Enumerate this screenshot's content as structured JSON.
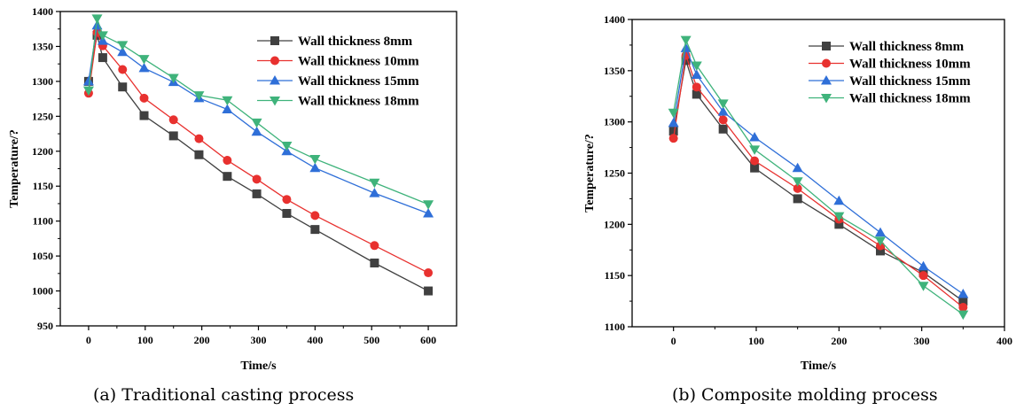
{
  "chart_data": [
    {
      "type": "line",
      "caption": "(a) Traditional casting process",
      "xlabel": "Time/s",
      "ylabel": "Temperature/?",
      "xlim": [
        -50,
        650
      ],
      "ylim": [
        950,
        1400
      ],
      "xticks": [
        0,
        100,
        200,
        300,
        400,
        500,
        600
      ],
      "yticks": [
        950,
        1000,
        1050,
        1100,
        1150,
        1200,
        1250,
        1300,
        1350,
        1400
      ],
      "legend_position": "top-right",
      "series": [
        {
          "name": "Wall thickness 8mm",
          "color": "#404040",
          "marker": "square",
          "x": [
            0,
            15,
            25,
            60,
            98,
            150,
            195,
            245,
            297,
            350,
            400,
            505,
            600
          ],
          "y": [
            1300,
            1366,
            1334,
            1292,
            1251,
            1222,
            1195,
            1164,
            1139,
            1111,
            1088,
            1040,
            1000
          ]
        },
        {
          "name": "Wall thickness 10mm",
          "color": "#e8312f",
          "marker": "circle",
          "x": [
            0,
            15,
            25,
            60,
            98,
            150,
            195,
            245,
            297,
            350,
            400,
            505,
            600
          ],
          "y": [
            1283,
            1370,
            1351,
            1317,
            1276,
            1245,
            1218,
            1187,
            1160,
            1131,
            1108,
            1065,
            1026
          ]
        },
        {
          "name": "Wall thickness 15mm",
          "color": "#2f6fd8",
          "marker": "triangle-up",
          "x": [
            0,
            15,
            25,
            60,
            98,
            150,
            195,
            245,
            297,
            350,
            400,
            505,
            600
          ],
          "y": [
            1300,
            1380,
            1358,
            1342,
            1319,
            1299,
            1276,
            1260,
            1228,
            1200,
            1176,
            1140,
            1111
          ]
        },
        {
          "name": "Wall thickness 18mm",
          "color": "#3fb37b",
          "marker": "triangle-down",
          "x": [
            0,
            15,
            25,
            60,
            98,
            150,
            195,
            245,
            297,
            350,
            400,
            505,
            600
          ],
          "y": [
            1287,
            1390,
            1366,
            1352,
            1332,
            1305,
            1280,
            1273,
            1241,
            1208,
            1189,
            1155,
            1124
          ]
        }
      ]
    },
    {
      "type": "line",
      "caption": "(b) Composite molding process",
      "xlabel": "Time/s",
      "ylabel": "Temperature/?",
      "xlim": [
        -50,
        400
      ],
      "ylim": [
        1100,
        1400
      ],
      "xticks": [
        0,
        100,
        200,
        300,
        400
      ],
      "yticks": [
        1100,
        1150,
        1200,
        1250,
        1300,
        1350,
        1400
      ],
      "legend_position": "top-right",
      "series": [
        {
          "name": "Wall thickness 8mm",
          "color": "#404040",
          "marker": "square",
          "x": [
            0,
            15,
            28,
            60,
            98,
            150,
            200,
            250,
            302,
            350
          ],
          "y": [
            1291,
            1360,
            1327,
            1293,
            1255,
            1225,
            1200,
            1174,
            1153,
            1125
          ]
        },
        {
          "name": "Wall thickness 10mm",
          "color": "#e8312f",
          "marker": "circle",
          "x": [
            0,
            15,
            28,
            60,
            98,
            150,
            200,
            250,
            302,
            350
          ],
          "y": [
            1284,
            1365,
            1334,
            1302,
            1262,
            1235,
            1205,
            1179,
            1150,
            1119
          ]
        },
        {
          "name": "Wall thickness 15mm",
          "color": "#2f6fd8",
          "marker": "triangle-up",
          "x": [
            0,
            15,
            28,
            60,
            98,
            150,
            200,
            250,
            302,
            350
          ],
          "y": [
            1299,
            1372,
            1346,
            1310,
            1285,
            1255,
            1223,
            1192,
            1159,
            1132
          ]
        },
        {
          "name": "Wall thickness 18mm",
          "color": "#3fb37b",
          "marker": "triangle-down",
          "x": [
            0,
            15,
            28,
            60,
            98,
            150,
            200,
            250,
            302,
            350
          ],
          "y": [
            1309,
            1380,
            1355,
            1318,
            1273,
            1242,
            1208,
            1184,
            1140,
            1112
          ]
        }
      ]
    }
  ]
}
